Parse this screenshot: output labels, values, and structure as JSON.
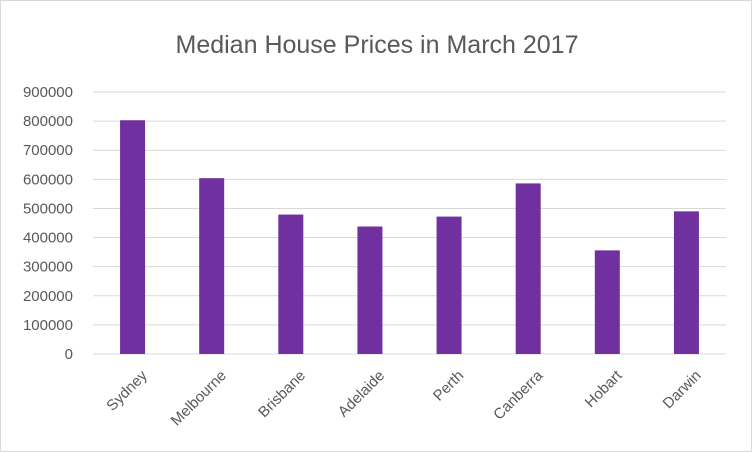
{
  "chart_data": {
    "type": "bar",
    "title": "Median House Prices in March 2017",
    "xlabel": "",
    "ylabel": "",
    "categories": [
      "Sydney",
      "Melbourne",
      "Brisbane",
      "Adelaide",
      "Perth",
      "Canberra",
      "Hobart",
      "Darwin"
    ],
    "values": [
      803000,
      604000,
      479000,
      438000,
      472000,
      586000,
      356000,
      490000
    ],
    "ylim": [
      0,
      900000
    ],
    "yticks": [
      "0",
      "100000",
      "200000",
      "300000",
      "400000",
      "500000",
      "600000",
      "700000",
      "800000",
      "900000"
    ],
    "grid": true,
    "legend": "none",
    "bar_color": "#7030a0"
  }
}
